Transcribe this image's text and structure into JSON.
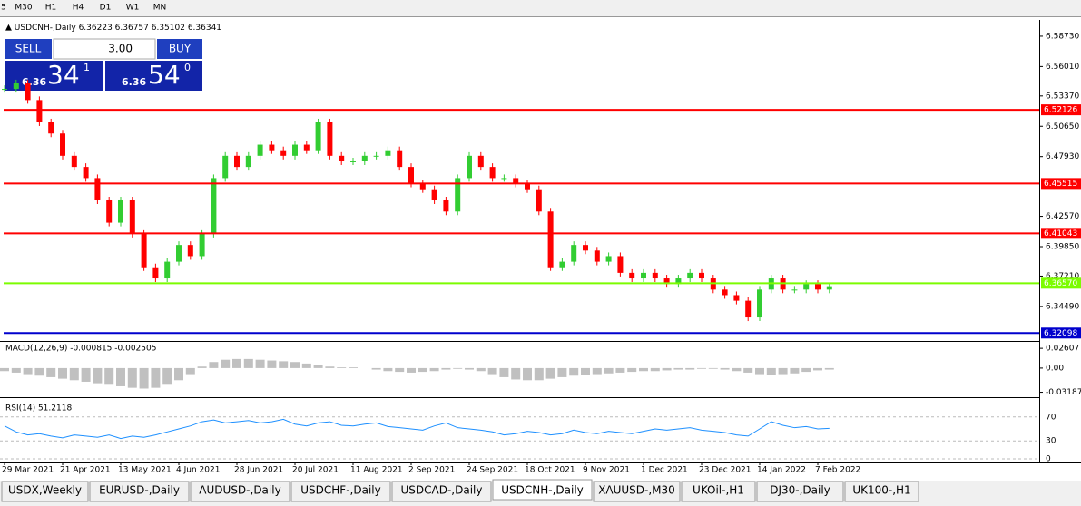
{
  "toolbar": [
    "5",
    "M30",
    "H1",
    "H4",
    "D1",
    "W1",
    "MN"
  ],
  "chart_data": {
    "type": "candlestick",
    "title": "USDCNH-,Daily",
    "ohlc": "6.36223 6.36757 6.35102 6.36341",
    "x_labels": [
      "29 Mar 2021",
      "21 Apr 2021",
      "13 May 2021",
      "4 Jun 2021",
      "28 Jun 2021",
      "20 Jul 2021",
      "11 Aug 2021",
      "2 Sep 2021",
      "24 Sep 2021",
      "18 Oct 2021",
      "9 Nov 2021",
      "1 Dec 2021",
      "23 Dec 2021",
      "14 Jan 2022",
      "7 Feb 2022"
    ],
    "closes": [
      6.54,
      6.545,
      6.53,
      6.51,
      6.5,
      6.48,
      6.47,
      6.46,
      6.44,
      6.42,
      6.44,
      6.41,
      6.38,
      6.37,
      6.385,
      6.4,
      6.39,
      6.41,
      6.46,
      6.48,
      6.47,
      6.48,
      6.49,
      6.485,
      6.48,
      6.49,
      6.485,
      6.51,
      6.48,
      6.475,
      6.475,
      6.48,
      6.48,
      6.485,
      6.47,
      6.455,
      6.45,
      6.44,
      6.43,
      6.46,
      6.48,
      6.47,
      6.46,
      6.46,
      6.455,
      6.45,
      6.43,
      6.38,
      6.385,
      6.4,
      6.395,
      6.385,
      6.39,
      6.375,
      6.37,
      6.375,
      6.37,
      6.365,
      6.37,
      6.375,
      6.37,
      6.36,
      6.355,
      6.35,
      6.335,
      6.36,
      6.37,
      6.36,
      6.36,
      6.365,
      6.36,
      6.363
    ],
    "ylim": [
      6.3147,
      6.6019
    ],
    "yticks": [
      {
        "value": 6.5873,
        "label": "6.58730"
      },
      {
        "value": 6.5601,
        "label": "6.56010"
      },
      {
        "value": 6.5337,
        "label": "6.53370"
      },
      {
        "value": 6.5065,
        "label": "6.50650"
      },
      {
        "value": 6.4793,
        "label": "6.47930"
      },
      {
        "value": 6.4257,
        "label": "6.42570"
      },
      {
        "value": 6.3985,
        "label": "6.39850"
      },
      {
        "value": 6.3721,
        "label": "6.37210"
      },
      {
        "value": 6.3449,
        "label": "6.34490"
      }
    ],
    "levels": [
      {
        "value": 6.52126,
        "label": "6.52126",
        "color": "#ff0000"
      },
      {
        "value": 6.45515,
        "label": "6.45515",
        "color": "#ff0000"
      },
      {
        "value": 6.41043,
        "label": "6.41043",
        "color": "#ff0000"
      },
      {
        "value": 6.3657,
        "label": "6.36570",
        "color": "#7cfc00"
      },
      {
        "value": 6.32098,
        "label": "6.32098",
        "color": "#0000cd"
      }
    ],
    "up_color": "#32cd32",
    "down_color": "#ff0000"
  },
  "trade_panel": {
    "sell": "SELL",
    "buy": "BUY",
    "lot": "3.00",
    "sell_base": "6.36",
    "sell_big": "34",
    "sell_sup": "1",
    "buy_base": "6.36",
    "buy_big": "54",
    "buy_sup": "0"
  },
  "macd": {
    "type": "histogram",
    "label": "MACD(12,26,9) -0.000815 -0.002505",
    "ylim": [
      -0.036,
      0.031
    ],
    "yticks": [
      {
        "value": 0.02607,
        "label": "0.02607"
      },
      {
        "value": 0,
        "label": "0.00"
      },
      {
        "value": -0.031872,
        "label": "-0.031872"
      }
    ],
    "values": [
      -0.004,
      -0.006,
      -0.008,
      -0.01,
      -0.012,
      -0.014,
      -0.016,
      -0.018,
      -0.02,
      -0.022,
      -0.024,
      -0.026,
      -0.027,
      -0.026,
      -0.022,
      -0.016,
      -0.008,
      0.002,
      0.008,
      0.011,
      0.012,
      0.012,
      0.011,
      0.01,
      0.009,
      0.008,
      0.006,
      0.004,
      0.002,
      0.001,
      0.001,
      0,
      -0.002,
      -0.004,
      -0.005,
      -0.006,
      -0.005,
      -0.004,
      -0.002,
      -0.001,
      -0.002,
      -0.004,
      -0.008,
      -0.012,
      -0.015,
      -0.016,
      -0.016,
      -0.014,
      -0.012,
      -0.01,
      -0.009,
      -0.008,
      -0.007,
      -0.006,
      -0.005,
      -0.004,
      -0.004,
      -0.003,
      -0.002,
      -0.002,
      -0.001,
      -0.001,
      -0.002,
      -0.004,
      -0.006,
      -0.008,
      -0.009,
      -0.008,
      -0.007,
      -0.005,
      -0.003,
      -0.002
    ]
  },
  "rsi": {
    "type": "line",
    "label": "RSI(14) 51.2118",
    "ylim": [
      0,
      100
    ],
    "yticks": [
      70,
      30,
      0
    ],
    "color": "#1e90ff",
    "values": [
      55,
      45,
      40,
      42,
      38,
      35,
      40,
      38,
      36,
      40,
      34,
      38,
      36,
      40,
      45,
      50,
      55,
      62,
      65,
      60,
      62,
      64,
      60,
      62,
      66,
      58,
      55,
      60,
      62,
      56,
      55,
      58,
      60,
      54,
      52,
      50,
      48,
      55,
      60,
      52,
      50,
      48,
      45,
      40,
      42,
      46,
      44,
      40,
      42,
      48,
      44,
      42,
      46,
      44,
      42,
      46,
      50,
      48,
      50,
      52,
      48,
      46,
      44,
      40,
      38,
      50,
      62,
      56,
      52,
      54,
      50,
      51
    ]
  },
  "tabs": [
    "USDX,Weekly",
    "EURUSD-,Daily",
    "AUDUSD-,Daily",
    "USDCHF-,Daily",
    "USDCAD-,Daily",
    "USDCNH-,Daily",
    "XAUUSD-,M30",
    "UKOil-,H1",
    "DJ30-,Daily",
    "UK100-,H1"
  ],
  "active_tab": 5
}
